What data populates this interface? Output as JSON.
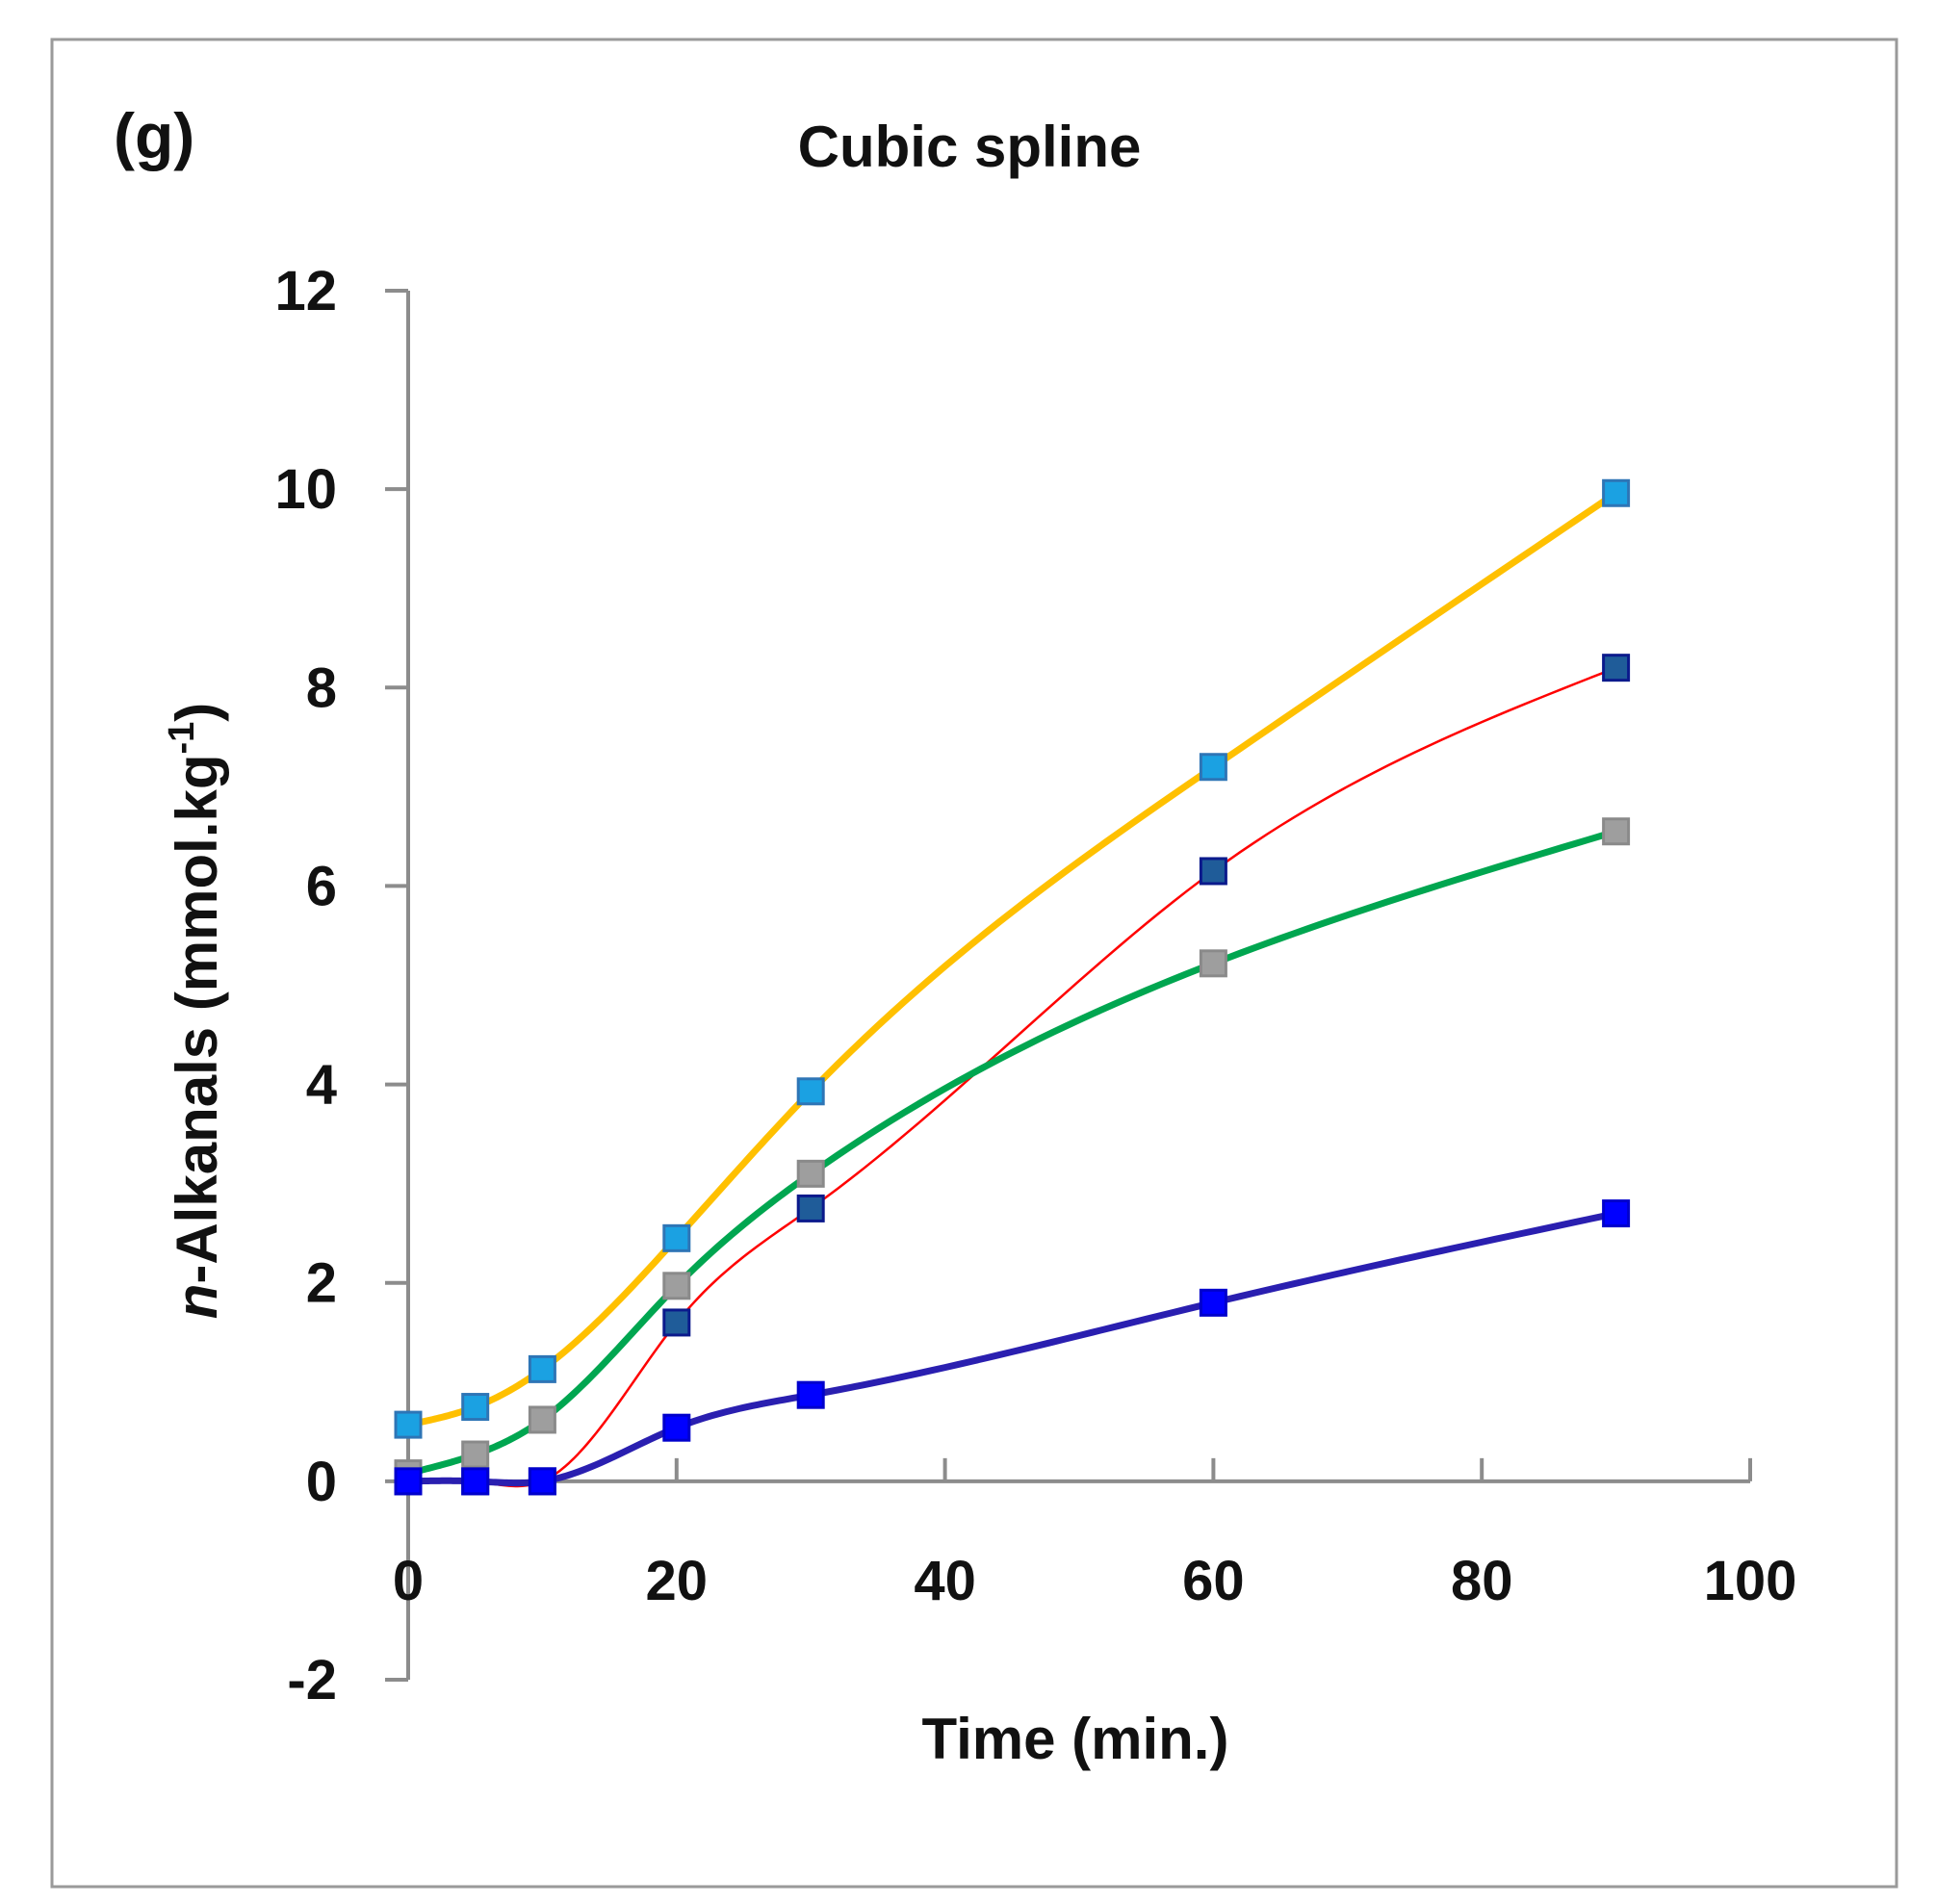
{
  "panel_label": "(g)",
  "chart_data": {
    "type": "line",
    "title": "Cubic spline",
    "xlabel": "Time (min.)",
    "ylabel": {
      "italic": "n",
      "main": "-Alkanals (mmol.kg",
      "superscript": "-1",
      "close": ")"
    },
    "xlim": [
      0,
      100
    ],
    "ylim": [
      -2,
      12
    ],
    "xticks": [
      0,
      20,
      40,
      60,
      80,
      100
    ],
    "yticks": [
      -2,
      0,
      2,
      4,
      6,
      8,
      10,
      12
    ],
    "grid": false,
    "legend": "none",
    "x": [
      0,
      5,
      10,
      20,
      30,
      60,
      90
    ],
    "series": [
      {
        "values": [
          0.57,
          0.75,
          1.13,
          2.45,
          3.93,
          7.2,
          9.96
        ],
        "line_color": "#FFC000",
        "marker_color": "#1BA1E2",
        "marker_stroke": "#2E75B6",
        "line_width": 7
      },
      {
        "values": [
          0.0,
          0.0,
          0.0,
          1.6,
          2.75,
          6.15,
          8.2
        ],
        "line_color": "#FF0000",
        "marker_color": "#1F5C99",
        "marker_stroke": "#0B1A8C",
        "line_width": 2.5
      },
      {
        "values": [
          0.08,
          0.27,
          0.62,
          1.97,
          3.1,
          5.22,
          6.55
        ],
        "line_color": "#00A650",
        "marker_color": "#9E9E9E",
        "marker_stroke": "#8A8A8A",
        "line_width": 7
      },
      {
        "values": [
          0.0,
          0.0,
          0.0,
          0.54,
          0.87,
          1.8,
          2.7
        ],
        "line_color": "#2A1FB0",
        "marker_color": "#0000FF",
        "marker_stroke": "#0000CC",
        "line_width": 7
      }
    ]
  }
}
